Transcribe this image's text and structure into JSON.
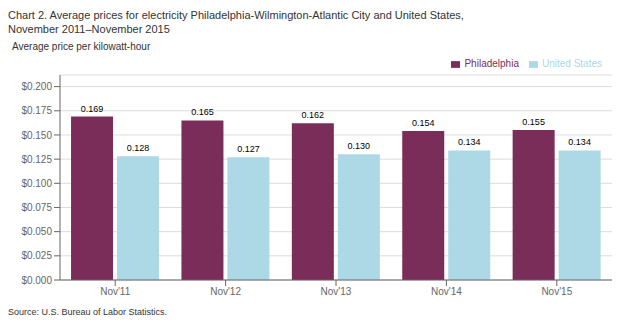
{
  "chart_data": {
    "type": "bar",
    "title": "Chart 2. Average prices for electricity Philadelphia-Wilmington-Atlantic City and United States,",
    "subtitle": "November 2011–November 2015",
    "ylabel": "Average price per kilowatt-hour",
    "annotations": [
      "Source: U.S. Bureau of Labor Statistics."
    ],
    "categories": [
      "Nov'11",
      "Nov'12",
      "Nov'13",
      "Nov'14",
      "Nov'15"
    ],
    "series": [
      {
        "name": "Philadelphia",
        "color": "#7B2D5A",
        "values": [
          0.169,
          0.165,
          0.162,
          0.154,
          0.155
        ],
        "value_labels": [
          "0.169",
          "0.165",
          "0.162",
          "0.154",
          "0.155"
        ]
      },
      {
        "name": "United States",
        "color": "#ADD8E6",
        "values": [
          0.128,
          0.127,
          0.13,
          0.134,
          0.134
        ],
        "value_labels": [
          "0.128",
          "0.127",
          "0.130",
          "0.134",
          "0.134"
        ]
      }
    ],
    "ylim": [
      0,
      0.212
    ],
    "yticks": [
      {
        "value": 0,
        "label": "$0.000"
      },
      {
        "value": 0.025,
        "label": "$0.025"
      },
      {
        "value": 0.05,
        "label": "$0.050"
      },
      {
        "value": 0.075,
        "label": "$0.075"
      },
      {
        "value": 0.1,
        "label": "$0.100"
      },
      {
        "value": 0.125,
        "label": "$0.125"
      },
      {
        "value": 0.15,
        "label": "$0.150"
      },
      {
        "value": 0.175,
        "label": "$0.175"
      },
      {
        "value": 0.2,
        "label": "$0.200"
      }
    ],
    "grid": true,
    "legend": "upper right",
    "data_labels": true
  }
}
